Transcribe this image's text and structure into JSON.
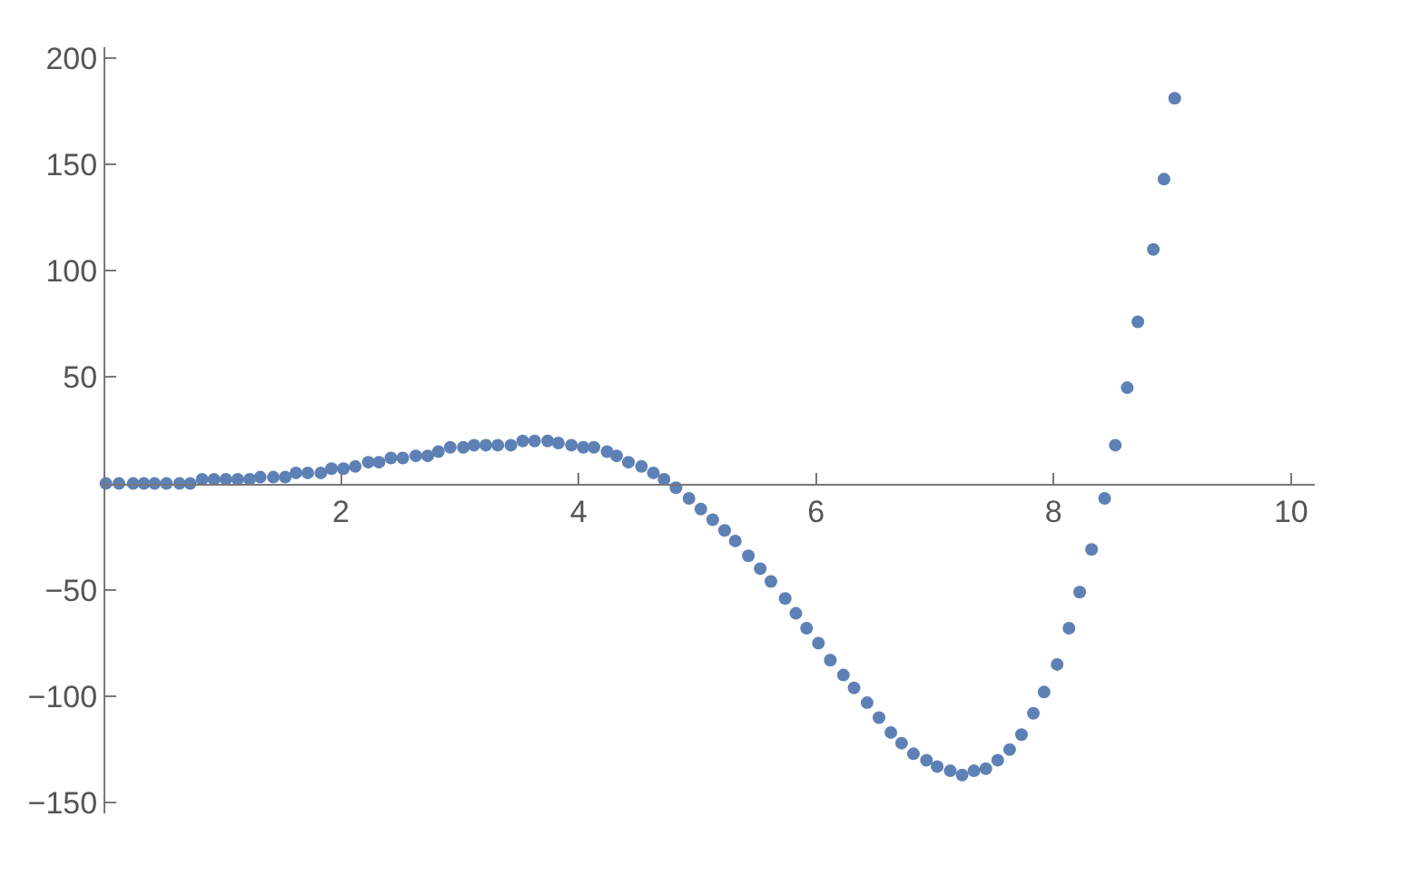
{
  "chart_data": {
    "type": "scatter",
    "marker": "circle",
    "xlim": [
      0,
      10.2
    ],
    "ylim": [
      -155,
      205
    ],
    "xticks": [
      2,
      4,
      6,
      8,
      10
    ],
    "yticks": [
      {
        "value": -150,
        "label": "−150"
      },
      {
        "value": -100,
        "label": "−100"
      },
      {
        "value": -50,
        "label": "−50"
      },
      50,
      100,
      150,
      200
    ],
    "series": [
      {
        "color": "#5e81b5",
        "x": [
          0.02,
          0.13,
          0.25,
          0.34,
          0.43,
          0.53,
          0.64,
          0.73,
          0.83,
          0.93,
          1.03,
          1.13,
          1.23,
          1.32,
          1.43,
          1.53,
          1.62,
          1.72,
          1.83,
          1.92,
          2.02,
          2.12,
          2.23,
          2.32,
          2.42,
          2.52,
          2.63,
          2.73,
          2.82,
          2.92,
          3.03,
          3.12,
          3.22,
          3.32,
          3.43,
          3.53,
          3.63,
          3.74,
          3.83,
          3.94,
          4.04,
          4.13,
          4.24,
          4.32,
          4.42,
          4.53,
          4.63,
          4.72,
          4.82,
          4.93,
          5.03,
          5.13,
          5.23,
          5.32,
          5.43,
          5.53,
          5.62,
          5.74,
          5.83,
          5.92,
          6.02,
          6.12,
          6.23,
          6.32,
          6.43,
          6.53,
          6.63,
          6.72,
          6.82,
          6.93,
          7.02,
          7.13,
          7.23,
          7.33,
          7.43,
          7.53,
          7.63,
          7.73,
          7.83,
          7.92,
          8.03,
          8.13,
          8.22,
          8.32,
          8.43,
          8.52,
          8.62,
          8.71,
          8.84,
          8.93,
          9.02
        ],
        "values": [
          0,
          0,
          0,
          0,
          0,
          0,
          0,
          0,
          2,
          2,
          2,
          2,
          2,
          3,
          3,
          3,
          5,
          5,
          5,
          7,
          7,
          8,
          10,
          10,
          12,
          12,
          13,
          13,
          15,
          17,
          17,
          18,
          18,
          18,
          18,
          20,
          20,
          20,
          19,
          18,
          17,
          17,
          15,
          13,
          10,
          8,
          5,
          2,
          -2,
          -7,
          -12,
          -17,
          -22,
          -27,
          -34,
          -40,
          -46,
          -54,
          -61,
          -68,
          -75,
          -83,
          -90,
          -96,
          -103,
          -110,
          -117,
          -122,
          -127,
          -130,
          -133,
          -135,
          -137,
          -135,
          -134,
          -130,
          -125,
          -118,
          -108,
          -98,
          -85,
          -68,
          -51,
          -31,
          -7,
          18,
          45,
          76,
          110,
          143,
          181
        ]
      }
    ]
  }
}
